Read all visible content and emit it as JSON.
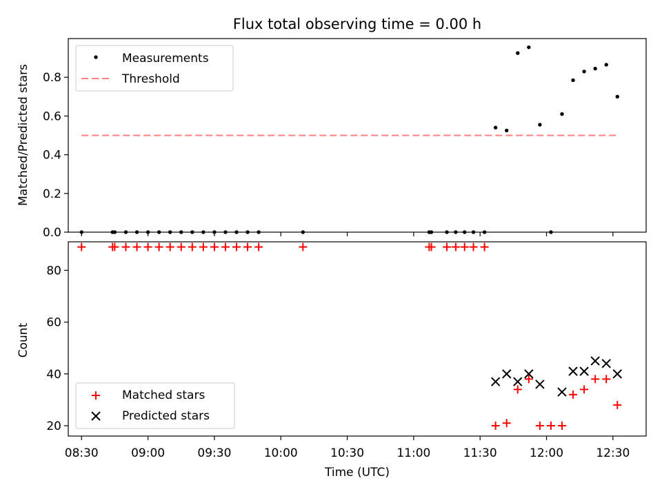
{
  "chart_data": {
    "title": "Flux total observing time = 0.00 h",
    "x_axis": {
      "label": "Time (UTC)",
      "range": [
        "08:24",
        "12:45"
      ],
      "ticks": [
        "08:30",
        "09:00",
        "09:30",
        "10:00",
        "10:30",
        "11:00",
        "11:30",
        "12:00",
        "12:30"
      ]
    },
    "panels": [
      {
        "type": "scatter",
        "ylabel": "Matched/Predicted stars",
        "ylim": [
          0.0,
          1.0
        ],
        "yticks": [
          "0.0",
          "0.2",
          "0.4",
          "0.6",
          "0.8"
        ],
        "legend_position": "upper-left",
        "legend": [
          {
            "label": "Measurements",
            "marker": "dot",
            "color": "#000000"
          },
          {
            "label": "Threshold",
            "marker": "dashed-line",
            "color": "#ff7f7f"
          }
        ],
        "threshold": {
          "value": 0.5,
          "x_start": "08:30",
          "x_end": "12:32"
        },
        "measurements": [
          {
            "t": "08:30",
            "y": 0.0
          },
          {
            "t": "08:44",
            "y": 0.0
          },
          {
            "t": "08:45",
            "y": 0.0
          },
          {
            "t": "08:50",
            "y": 0.0
          },
          {
            "t": "08:55",
            "y": 0.0
          },
          {
            "t": "09:00",
            "y": 0.0
          },
          {
            "t": "09:05",
            "y": 0.0
          },
          {
            "t": "09:10",
            "y": 0.0
          },
          {
            "t": "09:15",
            "y": 0.0
          },
          {
            "t": "09:20",
            "y": 0.0
          },
          {
            "t": "09:25",
            "y": 0.0
          },
          {
            "t": "09:30",
            "y": 0.0
          },
          {
            "t": "09:35",
            "y": 0.0
          },
          {
            "t": "09:40",
            "y": 0.0
          },
          {
            "t": "09:45",
            "y": 0.0
          },
          {
            "t": "09:50",
            "y": 0.0
          },
          {
            "t": "10:10",
            "y": 0.0
          },
          {
            "t": "11:07",
            "y": 0.0
          },
          {
            "t": "11:08",
            "y": 0.0
          },
          {
            "t": "11:15",
            "y": 0.0
          },
          {
            "t": "11:19",
            "y": 0.0
          },
          {
            "t": "11:23",
            "y": 0.0
          },
          {
            "t": "11:27",
            "y": 0.0
          },
          {
            "t": "11:32",
            "y": 0.0
          },
          {
            "t": "11:37",
            "y": 0.54
          },
          {
            "t": "11:42",
            "y": 0.525
          },
          {
            "t": "11:47",
            "y": 0.925
          },
          {
            "t": "11:52",
            "y": 0.955
          },
          {
            "t": "11:57",
            "y": 0.555
          },
          {
            "t": "12:02",
            "y": 0.0
          },
          {
            "t": "12:07",
            "y": 0.61
          },
          {
            "t": "12:12",
            "y": 0.785
          },
          {
            "t": "12:17",
            "y": 0.83
          },
          {
            "t": "12:22",
            "y": 0.845
          },
          {
            "t": "12:27",
            "y": 0.865
          },
          {
            "t": "12:32",
            "y": 0.7
          }
        ]
      },
      {
        "type": "scatter",
        "ylabel": "Count",
        "ylim": [
          16,
          91
        ],
        "yticks": [
          "20",
          "40",
          "60",
          "80"
        ],
        "legend_position": "lower-left",
        "series": [
          {
            "name": "Matched stars",
            "marker": "plus",
            "color": "#ff0000",
            "points": [
              {
                "t": "08:30",
                "y": 89
              },
              {
                "t": "08:44",
                "y": 89
              },
              {
                "t": "08:45",
                "y": 89
              },
              {
                "t": "08:50",
                "y": 89
              },
              {
                "t": "08:55",
                "y": 89
              },
              {
                "t": "09:00",
                "y": 89
              },
              {
                "t": "09:05",
                "y": 89
              },
              {
                "t": "09:10",
                "y": 89
              },
              {
                "t": "09:15",
                "y": 89
              },
              {
                "t": "09:20",
                "y": 89
              },
              {
                "t": "09:25",
                "y": 89
              },
              {
                "t": "09:30",
                "y": 89
              },
              {
                "t": "09:35",
                "y": 89
              },
              {
                "t": "09:40",
                "y": 89
              },
              {
                "t": "09:45",
                "y": 89
              },
              {
                "t": "09:50",
                "y": 89
              },
              {
                "t": "10:10",
                "y": 89
              },
              {
                "t": "11:07",
                "y": 89
              },
              {
                "t": "11:08",
                "y": 89
              },
              {
                "t": "11:15",
                "y": 89
              },
              {
                "t": "11:19",
                "y": 89
              },
              {
                "t": "11:23",
                "y": 89
              },
              {
                "t": "11:27",
                "y": 89
              },
              {
                "t": "11:32",
                "y": 89
              },
              {
                "t": "11:37",
                "y": 20
              },
              {
                "t": "11:42",
                "y": 21
              },
              {
                "t": "11:47",
                "y": 34
              },
              {
                "t": "11:52",
                "y": 38
              },
              {
                "t": "11:57",
                "y": 20
              },
              {
                "t": "12:02",
                "y": 20
              },
              {
                "t": "12:07",
                "y": 20
              },
              {
                "t": "12:12",
                "y": 32
              },
              {
                "t": "12:17",
                "y": 34
              },
              {
                "t": "12:22",
                "y": 38
              },
              {
                "t": "12:27",
                "y": 38
              },
              {
                "t": "12:32",
                "y": 28
              }
            ]
          },
          {
            "name": "Predicted stars",
            "marker": "x",
            "color": "#000000",
            "points": [
              {
                "t": "11:37",
                "y": 37
              },
              {
                "t": "11:42",
                "y": 40
              },
              {
                "t": "11:47",
                "y": 37
              },
              {
                "t": "11:52",
                "y": 40
              },
              {
                "t": "11:57",
                "y": 36
              },
              {
                "t": "12:07",
                "y": 33
              },
              {
                "t": "12:12",
                "y": 41
              },
              {
                "t": "12:17",
                "y": 41
              },
              {
                "t": "12:22",
                "y": 45
              },
              {
                "t": "12:27",
                "y": 44
              },
              {
                "t": "12:32",
                "y": 40
              }
            ]
          }
        ]
      }
    ]
  }
}
